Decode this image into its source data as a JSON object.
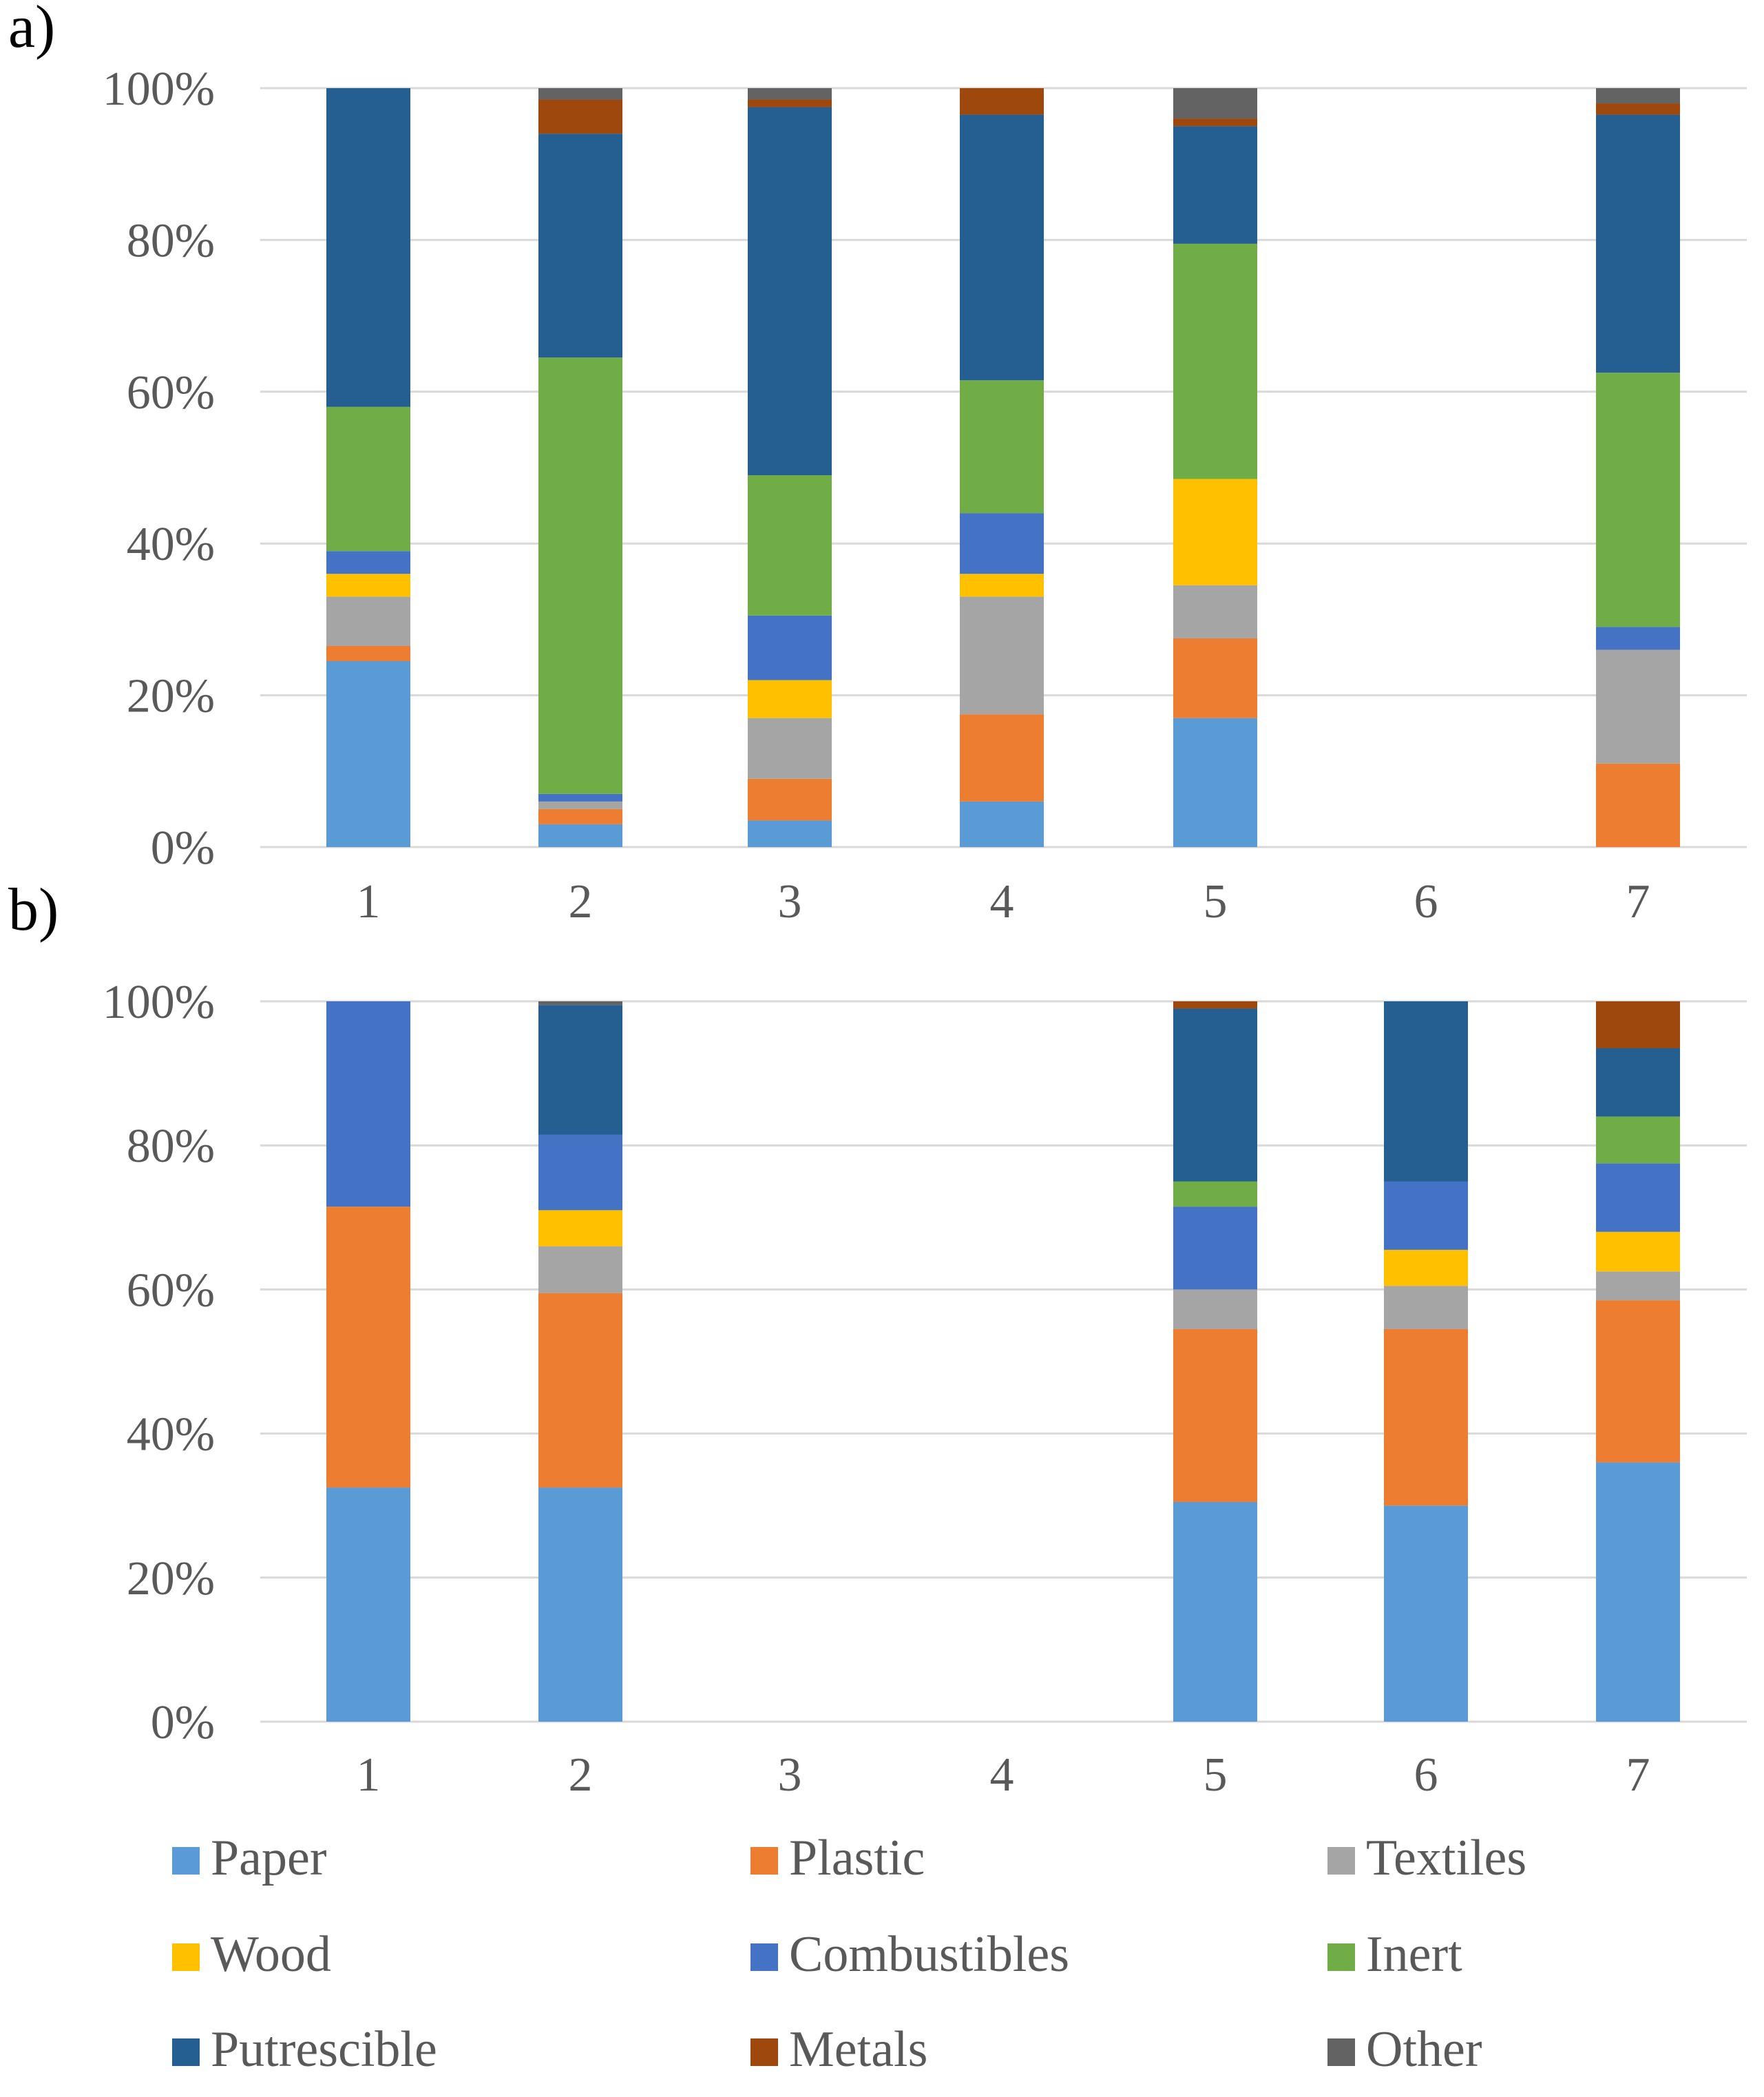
{
  "legend": [
    {
      "name": "Paper",
      "color": "#5B9BD5"
    },
    {
      "name": "Plastic",
      "color": "#ED7D31"
    },
    {
      "name": "Textiles",
      "color": "#A5A5A5"
    },
    {
      "name": "Wood",
      "color": "#FFC000"
    },
    {
      "name": "Combustibles",
      "color": "#4472C4"
    },
    {
      "name": "Inert",
      "color": "#70AD47"
    },
    {
      "name": "Putrescible",
      "color": "#255E91"
    },
    {
      "name": "Metals",
      "color": "#9E480E"
    },
    {
      "name": "Other",
      "color": "#636363"
    }
  ],
  "chart_data": [
    {
      "type": "bar",
      "stacked": true,
      "panel_label": "a)",
      "categories": [
        "1",
        "2",
        "3",
        "4",
        "5",
        "6",
        "7"
      ],
      "ylim": [
        0,
        100
      ],
      "yticks": [
        "0%",
        "20%",
        "40%",
        "60%",
        "80%",
        "100%"
      ],
      "grid": true,
      "legend_position": "bottom",
      "series": [
        {
          "name": "Paper",
          "values": [
            24.5,
            3,
            3.5,
            6,
            17,
            0,
            0
          ]
        },
        {
          "name": "Plastic",
          "values": [
            2,
            2,
            5.5,
            11.5,
            10.5,
            0,
            11
          ]
        },
        {
          "name": "Textiles",
          "values": [
            6.5,
            1,
            8,
            15.5,
            7,
            0,
            15
          ]
        },
        {
          "name": "Wood",
          "values": [
            3,
            0,
            5,
            3,
            14,
            0,
            0
          ]
        },
        {
          "name": "Combustibles",
          "values": [
            3,
            1,
            8.5,
            8,
            0,
            0,
            3
          ]
        },
        {
          "name": "Inert",
          "values": [
            19,
            57.5,
            18.5,
            17.5,
            31,
            0,
            33.5
          ]
        },
        {
          "name": "Putrescible",
          "values": [
            42,
            29.5,
            48.5,
            35,
            15.5,
            0,
            34
          ]
        },
        {
          "name": "Metals",
          "values": [
            0,
            4.5,
            1,
            3.5,
            1,
            0,
            1.5
          ]
        },
        {
          "name": "Other",
          "values": [
            0,
            1.5,
            1.5,
            0,
            4,
            0,
            2
          ]
        }
      ]
    },
    {
      "type": "bar",
      "stacked": true,
      "panel_label": "b)",
      "categories": [
        "1",
        "2",
        "3",
        "4",
        "5",
        "6",
        "7"
      ],
      "ylim": [
        0,
        100
      ],
      "yticks": [
        "0%",
        "20%",
        "40%",
        "60%",
        "80%",
        "100%"
      ],
      "grid": true,
      "legend_position": "bottom",
      "series": [
        {
          "name": "Paper",
          "values": [
            32.5,
            32.5,
            0,
            0,
            30.5,
            30,
            36
          ]
        },
        {
          "name": "Plastic",
          "values": [
            39,
            27,
            0,
            0,
            24,
            24.5,
            22.5
          ]
        },
        {
          "name": "Textiles",
          "values": [
            0,
            6.5,
            0,
            0,
            5.5,
            6,
            4
          ]
        },
        {
          "name": "Wood",
          "values": [
            0,
            5,
            0,
            0,
            0,
            5,
            5.5
          ]
        },
        {
          "name": "Combustibles",
          "values": [
            28.5,
            10.5,
            0,
            0,
            11.5,
            9.5,
            9.5
          ]
        },
        {
          "name": "Inert",
          "values": [
            0,
            0,
            0,
            0,
            3.5,
            0,
            6.5
          ]
        },
        {
          "name": "Putrescible",
          "values": [
            0,
            18,
            0,
            0,
            24,
            25,
            9.5
          ]
        },
        {
          "name": "Metals",
          "values": [
            0,
            0,
            0,
            0,
            1,
            0,
            6.5
          ]
        },
        {
          "name": "Other",
          "values": [
            0,
            0.5,
            0,
            0,
            0,
            0,
            0
          ]
        }
      ]
    }
  ]
}
